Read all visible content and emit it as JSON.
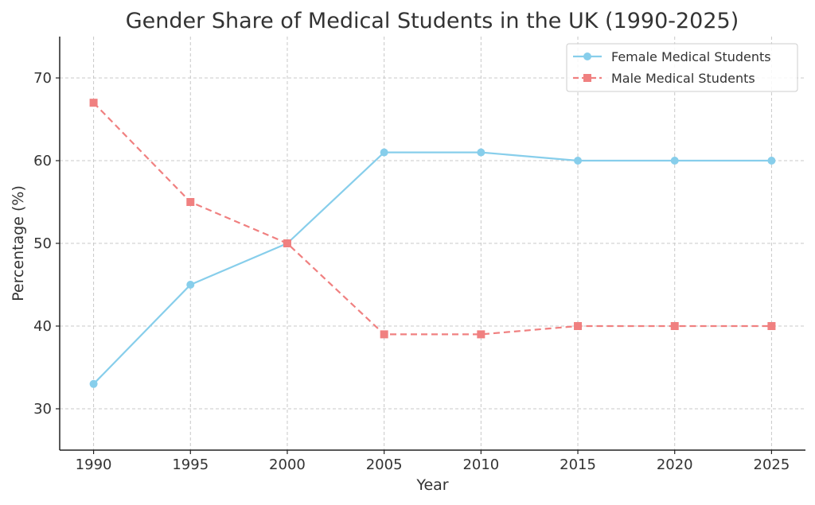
{
  "chart_data": {
    "type": "line",
    "title": "Gender Share of Medical Students in the UK (1990-2025)",
    "xlabel": "Year",
    "ylabel": "Percentage (%)",
    "x": [
      1990,
      1995,
      2000,
      2005,
      2010,
      2015,
      2020,
      2025
    ],
    "x_tick_labels": [
      "1990",
      "1995",
      "2000",
      "2005",
      "2010",
      "2015",
      "2020",
      "2025"
    ],
    "xlim": [
      1988.25,
      2026.75
    ],
    "ylim": [
      25,
      75
    ],
    "y_ticks": [
      30,
      40,
      50,
      60,
      70
    ],
    "y_tick_labels": [
      "30",
      "40",
      "50",
      "60",
      "70"
    ],
    "grid": true,
    "legend_position": "top-right",
    "series": [
      {
        "name": "Female Medical Students",
        "values": [
          33,
          45,
          50,
          61,
          61,
          60,
          60,
          60
        ],
        "color": "#87CEEB",
        "line_style": "solid",
        "marker": "circle"
      },
      {
        "name": "Male Medical Students",
        "values": [
          67,
          55,
          50,
          39,
          39,
          40,
          40,
          40
        ],
        "color": "#F08080",
        "line_style": "dashed",
        "marker": "square"
      }
    ]
  }
}
